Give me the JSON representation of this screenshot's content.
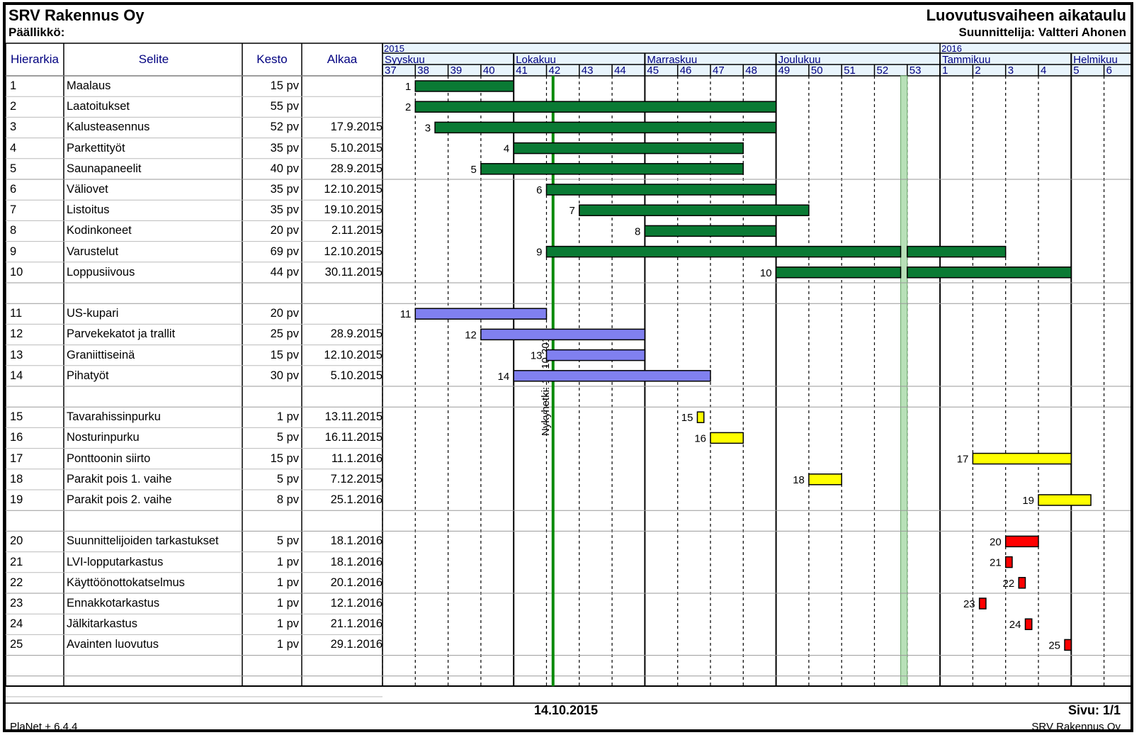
{
  "header": {
    "company": "SRV Rakennus Oy",
    "manager_label": "Päällikkö:",
    "title": "Luovutusvaiheen aikataulu",
    "planner": "Suunnittelija: Valtteri Ahonen"
  },
  "columns": {
    "hierarchy": "Hierarkia",
    "description": "Selite",
    "duration": "Kesto",
    "start": "Alkaa"
  },
  "timeline": {
    "years": [
      {
        "label": "2015",
        "week": "37"
      },
      {
        "label": "2016",
        "week": "1"
      }
    ],
    "months": [
      {
        "label": "Syyskuu",
        "week": "37"
      },
      {
        "label": "Lokakuu",
        "week": "41"
      },
      {
        "label": "Marraskuu",
        "week": "45"
      },
      {
        "label": "Joulukuu",
        "week": "49"
      },
      {
        "label": "Tammikuu",
        "week": "1"
      },
      {
        "label": "Helmikuu",
        "week": "5"
      }
    ],
    "weeks": [
      "37",
      "38",
      "39",
      "40",
      "41",
      "42",
      "43",
      "44",
      "45",
      "46",
      "47",
      "48",
      "49",
      "50",
      "51",
      "52",
      "53",
      "1",
      "2",
      "3",
      "4",
      "5",
      "6"
    ],
    "today_label": "Nykyhetki: 14.10.2015",
    "today_week_offset": 5.2
  },
  "tasks": [
    {
      "id": "1",
      "name": "Maalaus",
      "duration": "15 pv",
      "start": "",
      "color": "#0a7a34",
      "segments": [
        [
          1,
          4
        ]
      ]
    },
    {
      "id": "2",
      "name": "Laatoitukset",
      "duration": "55 pv",
      "start": "",
      "color": "#0a7a34",
      "segments": [
        [
          1,
          12
        ]
      ]
    },
    {
      "id": "3",
      "name": "Kalusteasennus",
      "duration": "52 pv",
      "start": "17.9.2015",
      "color": "#0a7a34",
      "segments": [
        [
          1.6,
          12
        ]
      ]
    },
    {
      "id": "4",
      "name": "Parkettityöt",
      "duration": "35 pv",
      "start": "5.10.2015",
      "color": "#0a7a34",
      "segments": [
        [
          4,
          11
        ]
      ]
    },
    {
      "id": "5",
      "name": "Saunapaneelit",
      "duration": "40 pv",
      "start": "28.9.2015",
      "color": "#0a7a34",
      "segments": [
        [
          3,
          11
        ]
      ]
    },
    {
      "id": "6",
      "name": "Väliovet",
      "duration": "35 pv",
      "start": "12.10.2015",
      "color": "#0a7a34",
      "segments": [
        [
          5,
          12
        ]
      ]
    },
    {
      "id": "7",
      "name": "Listoitus",
      "duration": "35 pv",
      "start": "19.10.2015",
      "color": "#0a7a34",
      "segments": [
        [
          6,
          13
        ]
      ]
    },
    {
      "id": "8",
      "name": "Kodinkoneet",
      "duration": "20 pv",
      "start": "2.11.2015",
      "color": "#0a7a34",
      "segments": [
        [
          8,
          12
        ]
      ]
    },
    {
      "id": "9",
      "name": "Varustelut",
      "duration": "69 pv",
      "start": "12.10.2015",
      "color": "#0a7a34",
      "segments": [
        [
          5,
          15.8
        ],
        [
          16.0,
          19
        ]
      ]
    },
    {
      "id": "10",
      "name": "Loppusiivous",
      "duration": "44 pv",
      "start": "30.11.2015",
      "color": "#0a7a34",
      "segments": [
        [
          12,
          15.8
        ],
        [
          16.0,
          21
        ]
      ]
    },
    {
      "id": "11",
      "name": "US-kupari",
      "duration": "20 pv",
      "start": "",
      "color": "#8080f0",
      "segments": [
        [
          1,
          5
        ]
      ]
    },
    {
      "id": "12",
      "name": "Parvekekatot ja trallit",
      "duration": "25 pv",
      "start": "28.9.2015",
      "color": "#8080f0",
      "segments": [
        [
          3,
          8
        ]
      ]
    },
    {
      "id": "13",
      "name": "Graniittiseinä",
      "duration": "15 pv",
      "start": "12.10.2015",
      "color": "#8080f0",
      "segments": [
        [
          5,
          8
        ]
      ]
    },
    {
      "id": "14",
      "name": "Pihatyöt",
      "duration": "30 pv",
      "start": "5.10.2015",
      "color": "#8080f0",
      "segments": [
        [
          4,
          10
        ]
      ]
    },
    {
      "id": "15",
      "name": "Tavarahissinpurku",
      "duration": "1 pv",
      "start": "13.11.2015",
      "color": "#ffff00",
      "segments": [
        [
          9.6,
          9.8
        ]
      ]
    },
    {
      "id": "16",
      "name": "Nosturinpurku",
      "duration": "5 pv",
      "start": "16.11.2015",
      "color": "#ffff00",
      "segments": [
        [
          10,
          11
        ]
      ]
    },
    {
      "id": "17",
      "name": "Ponttoonin siirto",
      "duration": "15 pv",
      "start": "11.1.2016",
      "color": "#ffff00",
      "segments": [
        [
          18,
          21
        ]
      ]
    },
    {
      "id": "18",
      "name": "Parakit pois 1. vaihe",
      "duration": "5 pv",
      "start": "7.12.2015",
      "color": "#ffff00",
      "segments": [
        [
          13,
          14
        ]
      ]
    },
    {
      "id": "19",
      "name": "Parakit pois 2. vaihe",
      "duration": "8 pv",
      "start": "25.1.2016",
      "color": "#ffff00",
      "segments": [
        [
          20,
          21.6
        ]
      ]
    },
    {
      "id": "20",
      "name": "Suunnittelijoiden tarkastukset",
      "duration": "5 pv",
      "start": "18.1.2016",
      "color": "#ff0000",
      "segments": [
        [
          19,
          20
        ]
      ]
    },
    {
      "id": "21",
      "name": "LVI-lopputarkastus",
      "duration": "1 pv",
      "start": "18.1.2016",
      "color": "#ff0000",
      "segments": [
        [
          19,
          19.2
        ]
      ]
    },
    {
      "id": "22",
      "name": "Käyttöönottokatselmus",
      "duration": "1 pv",
      "start": "20.1.2016",
      "color": "#ff0000",
      "segments": [
        [
          19.4,
          19.6
        ]
      ]
    },
    {
      "id": "23",
      "name": "Ennakkotarkastus",
      "duration": "1 pv",
      "start": "12.1.2016",
      "color": "#ff0000",
      "segments": [
        [
          18.2,
          18.4
        ]
      ]
    },
    {
      "id": "24",
      "name": "Jälkitarkastus",
      "duration": "1 pv",
      "start": "21.1.2016",
      "color": "#ff0000",
      "segments": [
        [
          19.6,
          19.8
        ]
      ]
    },
    {
      "id": "25",
      "name": "Avainten luovutus",
      "duration": "1 pv",
      "start": "29.1.2016",
      "color": "#ff0000",
      "segments": [
        [
          20.8,
          21
        ]
      ]
    }
  ],
  "footer": {
    "date": "14.10.2015",
    "page": "Sivu: 1/1",
    "app": "PlaNet + 6.4.4",
    "company": "SRV Rakennus Oy"
  }
}
